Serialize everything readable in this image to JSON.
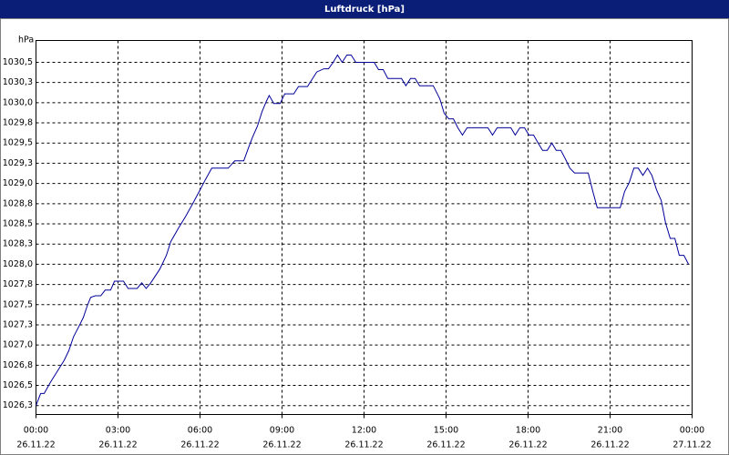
{
  "chart_data": {
    "type": "line",
    "title": "Luftdruck [hPa]",
    "y_label": "hPa",
    "xlim": [
      0,
      24
    ],
    "ylim": [
      1026.14,
      1030.77
    ],
    "xticks": [
      {
        "value": 0,
        "label": "00:00"
      },
      {
        "value": 3,
        "label": "03:00"
      },
      {
        "value": 6,
        "label": "06:00"
      },
      {
        "value": 9,
        "label": "09:00"
      },
      {
        "value": 12,
        "label": "12:00"
      },
      {
        "value": 15,
        "label": "15:00"
      },
      {
        "value": 18,
        "label": "18:00"
      },
      {
        "value": 21,
        "label": "21:00"
      },
      {
        "value": 24,
        "label": "00:00"
      }
    ],
    "xtick_dates": [
      "26.11.22",
      "26.11.22",
      "26.11.22",
      "26.11.22",
      "26.11.22",
      "26.11.22",
      "26.11.22",
      "26.11.22",
      "27.11.22"
    ],
    "yticks": [
      {
        "value": 1026.25,
        "label": "1026,3"
      },
      {
        "value": 1026.5,
        "label": "1026,5"
      },
      {
        "value": 1026.75,
        "label": "1026,8"
      },
      {
        "value": 1027,
        "label": "1027,0"
      },
      {
        "value": 1027.25,
        "label": "1027,3"
      },
      {
        "value": 1027.5,
        "label": "1027,5"
      },
      {
        "value": 1027.75,
        "label": "1027,8"
      },
      {
        "value": 1028,
        "label": "1028,0"
      },
      {
        "value": 1028.25,
        "label": "1028,3"
      },
      {
        "value": 1028.5,
        "label": "1028,5"
      },
      {
        "value": 1028.75,
        "label": "1028,8"
      },
      {
        "value": 1029,
        "label": "1029,0"
      },
      {
        "value": 1029.25,
        "label": "1029,3"
      },
      {
        "value": 1029.5,
        "label": "1029,5"
      },
      {
        "value": 1029.75,
        "label": "1029,8"
      },
      {
        "value": 1030,
        "label": "1030,0"
      },
      {
        "value": 1030.25,
        "label": "1030,3"
      },
      {
        "value": 1030.5,
        "label": "1030,5"
      }
    ],
    "grid": true,
    "series": [
      {
        "color": "#000099",
        "x": [
          0,
          0.17,
          0.3,
          0.53,
          0.77,
          1.03,
          1.2,
          1.37,
          1.57,
          1.73,
          1.87,
          2,
          2.17,
          2.37,
          2.53,
          2.73,
          2.87,
          3.2,
          3.37,
          3.7,
          3.87,
          4.03,
          4.2,
          4.53,
          4.77,
          4.93,
          5.2,
          5.47,
          5.7,
          5.97,
          6.2,
          6.43,
          7.03,
          7.27,
          7.6,
          7.77,
          7.93,
          8.1,
          8.27,
          8.43,
          8.53,
          8.7,
          8.93,
          9.1,
          9.43,
          9.6,
          9.93,
          10.1,
          10.27,
          10.53,
          10.7,
          10.87,
          11.03,
          11.2,
          11.37,
          11.53,
          11.7,
          12.37,
          12.53,
          12.7,
          12.87,
          13.37,
          13.53,
          13.7,
          13.87,
          14.03,
          14.53,
          14.77,
          14.93,
          15.1,
          15.27,
          15.43,
          15.6,
          15.77,
          16.53,
          16.7,
          16.87,
          17.37,
          17.53,
          17.7,
          17.87,
          18.03,
          18.2,
          18.37,
          18.53,
          18.7,
          18.87,
          19.03,
          19.2,
          19.37,
          19.53,
          19.7,
          20.2,
          20.37,
          20.53,
          21.37,
          21.53,
          21.7,
          21.87,
          22.03,
          22.2,
          22.37,
          22.53,
          22.7,
          22.87,
          23.03,
          23.2,
          23.37,
          23.53,
          23.7,
          23.87
        ],
        "values": [
          1026.25,
          1026.4,
          1026.4,
          1026.54,
          1026.67,
          1026.81,
          1026.93,
          1027.1,
          1027.23,
          1027.34,
          1027.48,
          1027.59,
          1027.61,
          1027.61,
          1027.68,
          1027.68,
          1027.79,
          1027.79,
          1027.7,
          1027.7,
          1027.77,
          1027.7,
          1027.77,
          1027.94,
          1028.11,
          1028.28,
          1028.44,
          1028.59,
          1028.73,
          1028.9,
          1029.05,
          1029.19,
          1029.19,
          1029.28,
          1029.28,
          1029.44,
          1029.58,
          1029.71,
          1029.89,
          1030.02,
          1030.09,
          1029.99,
          1029.99,
          1030.11,
          1030.11,
          1030.2,
          1030.2,
          1030.29,
          1030.38,
          1030.42,
          1030.42,
          1030.5,
          1030.59,
          1030.5,
          1030.59,
          1030.59,
          1030.5,
          1030.5,
          1030.41,
          1030.41,
          1030.3,
          1030.3,
          1030.21,
          1030.3,
          1030.3,
          1030.21,
          1030.21,
          1030.05,
          1029.87,
          1029.8,
          1029.8,
          1029.69,
          1029.6,
          1029.69,
          1029.69,
          1029.6,
          1029.69,
          1029.69,
          1029.6,
          1029.69,
          1029.69,
          1029.6,
          1029.6,
          1029.5,
          1029.41,
          1029.41,
          1029.5,
          1029.41,
          1029.41,
          1029.3,
          1029.19,
          1029.13,
          1029.13,
          1028.9,
          1028.7,
          1028.7,
          1028.9,
          1029.01,
          1029.19,
          1029.19,
          1029.1,
          1029.19,
          1029.1,
          1028.92,
          1028.79,
          1028.51,
          1028.32,
          1028.32,
          1028.11,
          1028.11,
          1028
        ]
      }
    ]
  }
}
